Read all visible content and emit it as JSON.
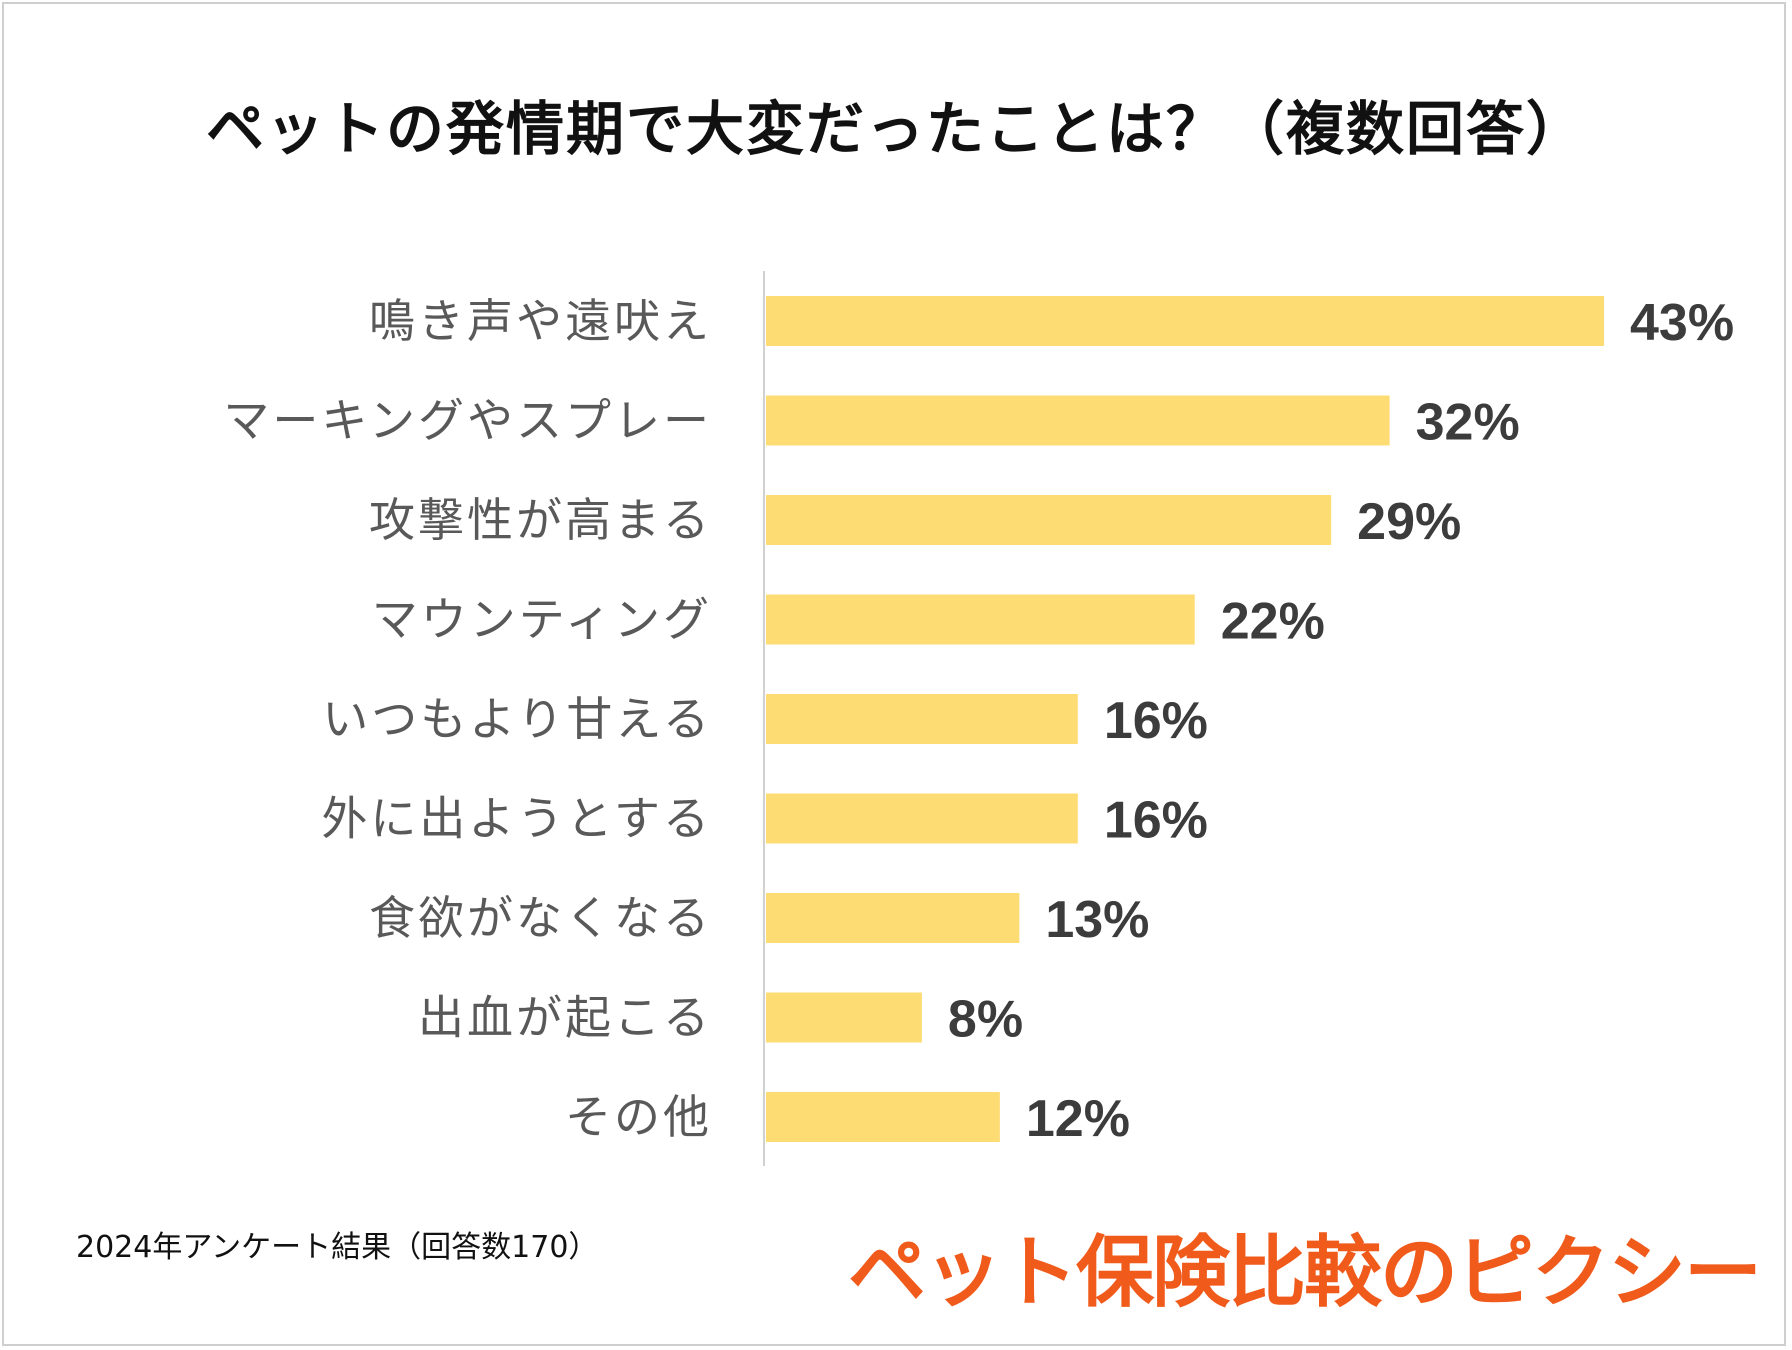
{
  "colors": {
    "bar": "#fddc74",
    "value_text": "#3c3c3c",
    "category_text": "#595959",
    "axis": "#d0d0d0",
    "logo": "#f05a1a"
  },
  "footnote": "2024年アンケート結果（回答数170）",
  "logo_text": "ペット保険比較のピクシー",
  "chart_data": {
    "type": "bar",
    "orientation": "horizontal",
    "title": "ペットの発情期で大変だったことは？（複数回答）",
    "categories": [
      "鳴き声や遠吠え",
      "マーキングやスプレー",
      "攻撃性が高まる",
      "マウンティング",
      "いつもより甘える",
      "外に出ようとする",
      "食欲がなくなる",
      "出血が起こる",
      "その他"
    ],
    "values": [
      43,
      32,
      29,
      22,
      16,
      16,
      13,
      8,
      12
    ],
    "value_labels": [
      "43%",
      "32%",
      "29%",
      "22%",
      "16%",
      "16%",
      "13%",
      "8%",
      "12%"
    ],
    "unit": "%",
    "xlim": [
      0,
      43
    ],
    "grid": false,
    "legend": "none"
  }
}
